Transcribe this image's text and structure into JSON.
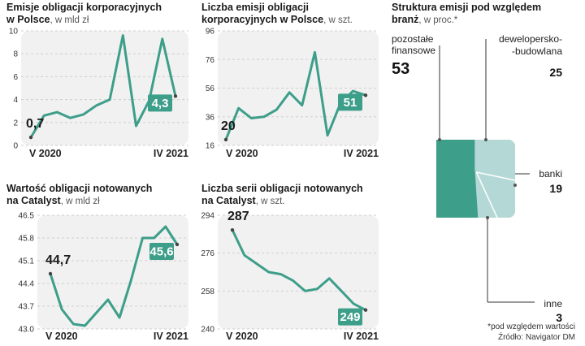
{
  "colors": {
    "teal": "#3d9e8a",
    "teal_light": "#b4d8d5",
    "panel": "#f1f1f1",
    "grid": "#cfcfcf",
    "marker": "#444444"
  },
  "chart_data": [
    {
      "type": "line",
      "title": "Emisje obligacji korporacyjnych",
      "title2": "w Polsce",
      "unit": ", w mld zł",
      "yticks": [
        "10",
        "8",
        "6",
        "4",
        "2",
        "0"
      ],
      "ylim": [
        0,
        10
      ],
      "x_start": "V 2020",
      "x_end": "IV 2021",
      "values": [
        0.7,
        2.6,
        2.9,
        2.4,
        2.7,
        3.5,
        4.0,
        9.6,
        1.7,
        3.9,
        9.3,
        4.3
      ],
      "first_label": "0,7",
      "last_label": "4,3"
    },
    {
      "type": "line",
      "title": "Liczba emisji obligacji",
      "title2": "korporacyjnych w Polsce",
      "unit": ", w szt.",
      "yticks": [
        "96",
        "76",
        "56",
        "36",
        "16"
      ],
      "ylim": [
        16,
        96
      ],
      "x_start": "V 2020",
      "x_end": "IV 2021",
      "values": [
        20,
        42,
        35,
        36,
        41,
        53,
        44,
        81,
        23,
        45,
        54,
        51
      ],
      "first_label": "20",
      "last_label": "51"
    },
    {
      "type": "line",
      "title": "Wartość obligacji notowanych",
      "title2": "na Catalyst",
      "unit": ", w mld zł",
      "yticks": [
        "46.5",
        "45.8",
        "45.1",
        "44.4",
        "43.7",
        "43.0"
      ],
      "ylim": [
        43.0,
        46.5
      ],
      "x_start": "V 2020",
      "x_end": "IV 2021",
      "values": [
        44.7,
        43.6,
        43.15,
        43.1,
        43.5,
        43.9,
        43.35,
        44.5,
        45.8,
        45.8,
        46.15,
        45.6
      ],
      "first_label": "44,7",
      "last_label": "45,6"
    },
    {
      "type": "line",
      "title": "Liczba serii obligacji notowanych",
      "title2": "na Catalyst",
      "unit": ", w szt.",
      "yticks": [
        "294",
        "276",
        "258",
        "240"
      ],
      "ylim": [
        240,
        294
      ],
      "x_start": "V 2020",
      "x_end": "IV 2021",
      "values": [
        287,
        275,
        271,
        267,
        266,
        263,
        258,
        259,
        264,
        258,
        252,
        249
      ],
      "first_label": "287",
      "last_label": "249"
    }
  ],
  "structure": {
    "title": "Struktura emisji pod względem",
    "title2": "branż",
    "unit": ", w proc.*",
    "categories": [
      {
        "name_lines": [
          "pozostałe",
          "finansowe"
        ],
        "value": 53,
        "label": "53"
      },
      {
        "name_lines": [
          "dewelopersko-",
          "-budowlana"
        ],
        "value": 25,
        "label": "25"
      },
      {
        "name_lines": [
          "banki"
        ],
        "value": 19,
        "label": "19"
      },
      {
        "name_lines": [
          "inne"
        ],
        "value": 3,
        "label": "3"
      }
    ]
  },
  "footnote": "*pod względem wartości",
  "source": "Źródło: Navigator DM"
}
